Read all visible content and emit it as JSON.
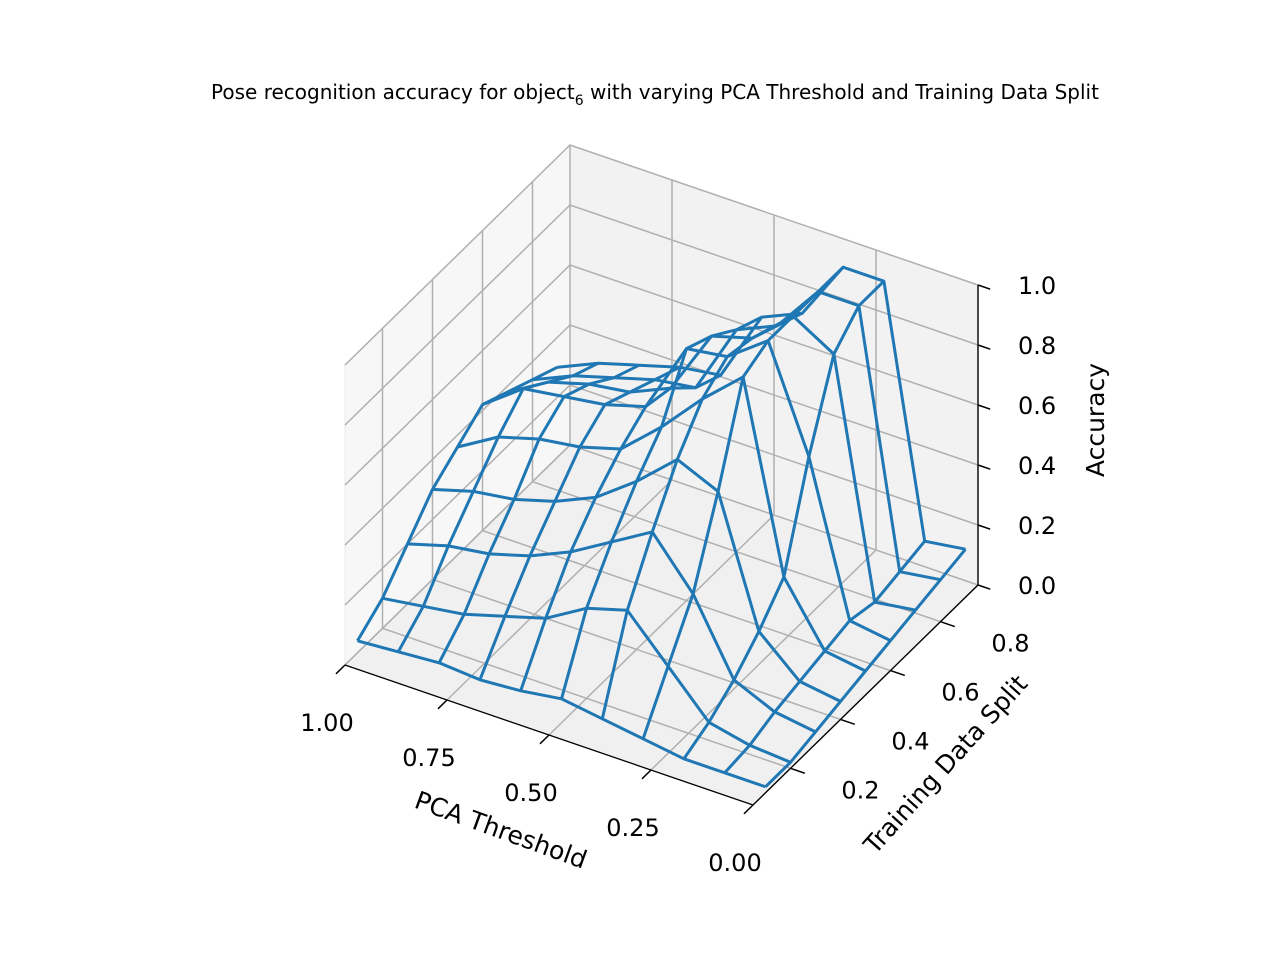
{
  "chart_data": {
    "type": "wireframe-3d",
    "title_main": "Pose recognition accuracy for object",
    "title_sub": "6",
    "title_rest": " with varying PCA Threshold and Training Data Split",
    "xlabel": "PCA Threshold",
    "ylabel": "Training Data Split",
    "zlabel": "Accuracy",
    "xlim": [
      1.0,
      0.0
    ],
    "ylim": [
      0.05,
      0.95
    ],
    "zlim": [
      0.0,
      1.0
    ],
    "x_ticks": [
      "1.00",
      "0.75",
      "0.50",
      "0.25",
      "0.00"
    ],
    "y_ticks": [
      "0.2",
      "0.4",
      "0.6",
      "0.8"
    ],
    "z_ticks": [
      "0.0",
      "0.2",
      "0.4",
      "0.6",
      "0.8",
      "1.0"
    ],
    "grid": true,
    "line_color": "#1f77b4",
    "pca_threshold": [
      1.0,
      0.9,
      0.8,
      0.7,
      0.6,
      0.5,
      0.4,
      0.3,
      0.2,
      0.1,
      0.0
    ],
    "training_split": [
      0.1,
      0.2,
      0.3,
      0.4,
      0.5,
      0.6,
      0.7,
      0.8,
      0.9
    ],
    "accuracy": [
      [
        0.04,
        0.1,
        0.2,
        0.3,
        0.36,
        0.42,
        0.38,
        0.34,
        0.3
      ],
      [
        0.05,
        0.12,
        0.24,
        0.34,
        0.44,
        0.52,
        0.46,
        0.4,
        0.36
      ],
      [
        0.06,
        0.14,
        0.26,
        0.36,
        0.48,
        0.54,
        0.5,
        0.44,
        0.4
      ],
      [
        0.05,
        0.18,
        0.3,
        0.4,
        0.5,
        0.56,
        0.52,
        0.48,
        0.44
      ],
      [
        0.06,
        0.22,
        0.36,
        0.46,
        0.54,
        0.6,
        0.58,
        0.5,
        0.46
      ],
      [
        0.08,
        0.3,
        0.44,
        0.56,
        0.66,
        0.84,
        0.8,
        0.74,
        0.7
      ],
      [
        0.06,
        0.34,
        0.52,
        0.68,
        0.8,
        0.86,
        0.84,
        0.8,
        0.76
      ],
      [
        0.04,
        0.2,
        0.36,
        0.62,
        0.92,
        0.96,
        0.96,
        0.96,
        0.96
      ],
      [
        0.02,
        0.06,
        0.12,
        0.2,
        0.3,
        0.62,
        0.88,
        0.96,
        0.96
      ],
      [
        0.02,
        0.03,
        0.06,
        0.08,
        0.1,
        0.12,
        0.1,
        0.12,
        0.14
      ],
      [
        0.02,
        0.02,
        0.04,
        0.06,
        0.08,
        0.1,
        0.12,
        0.14,
        0.16
      ]
    ]
  }
}
